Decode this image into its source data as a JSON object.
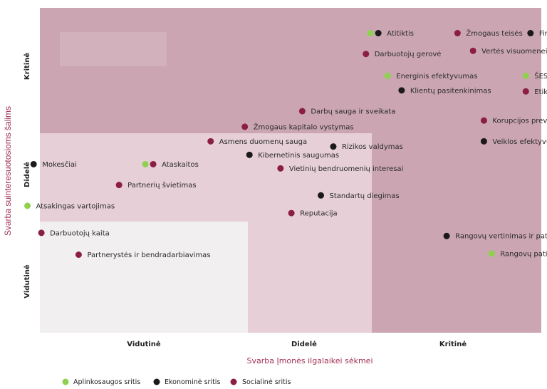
{
  "chart_data": {
    "type": "scatter",
    "title": "",
    "xlabel": "Svarba Įmonės ilgalaikei sėkmei",
    "ylabel": "Svarba suinteresuotosioms šalims",
    "x_categories": [
      "Vidutinė",
      "Didelė",
      "Kritinė"
    ],
    "y_categories": [
      "Vidutinė",
      "Didelė",
      "Kritinė"
    ],
    "colors": {
      "Aplinkosaugos sritis": "#8fd14f",
      "Ekonominė sritis": "#1a1a1a",
      "Socialinė sritis": "#8b1e45"
    },
    "legend": [
      {
        "name": "Aplinkosaugos sritis"
      },
      {
        "name": "Ekonominė sritis"
      },
      {
        "name": "Socialinė sritis"
      }
    ],
    "points": [
      {
        "label": "Atitiktis",
        "x": 1.51,
        "y": 2.88,
        "series": [
          "Aplinkosaugos sritis",
          "Ekonominė sritis"
        ]
      },
      {
        "label": "Žmogaus teisės",
        "x": 2.02,
        "y": 2.88,
        "series": [
          "Socialinė sritis"
        ]
      },
      {
        "label": "Finansinė grąža",
        "x": 2.49,
        "y": 2.88,
        "series": [
          "Ekonominė sritis"
        ]
      },
      {
        "label": "Vertės visuomenei kūrimas",
        "x": 2.12,
        "y": 2.71,
        "series": [
          "Socialinė sritis"
        ]
      },
      {
        "label": "Darbuotojų gerovė",
        "x": 1.43,
        "y": 2.68,
        "series": [
          "Socialinė sritis"
        ]
      },
      {
        "label": "Energinis efektyvumas",
        "x": 1.57,
        "y": 2.47,
        "series": [
          "Aplinkosaugos sritis"
        ]
      },
      {
        "label": "ŠESD emisijos",
        "x": 2.46,
        "y": 2.47,
        "series": [
          "Aplinkosaugos sritis"
        ]
      },
      {
        "label": "Klientų pasitenkinimas",
        "x": 1.66,
        "y": 2.33,
        "series": [
          "Ekonominė sritis"
        ]
      },
      {
        "label": "Etikos kodeksas",
        "x": 2.46,
        "y": 2.32,
        "series": [
          "Socialinė sritis"
        ]
      },
      {
        "label": "Darbų sauga ir sveikata",
        "x": 1.02,
        "y": 2.13,
        "series": [
          "Socialinė sritis"
        ]
      },
      {
        "label": "Korupcijos prevencija",
        "x": 2.19,
        "y": 2.04,
        "series": [
          "Socialinė sritis"
        ]
      },
      {
        "label": "Žmogaus kapitalo vystymas",
        "x": 0.65,
        "y": 1.98,
        "series": [
          "Socialinė sritis"
        ]
      },
      {
        "label": "Asmens duomenų sauga",
        "x": 0.43,
        "y": 1.84,
        "series": [
          "Socialinė sritis"
        ]
      },
      {
        "label": "Veiklos efektyvumas",
        "x": 2.19,
        "y": 1.84,
        "series": [
          "Ekonominė sritis"
        ]
      },
      {
        "label": "Rizikos valdymas",
        "x": 1.22,
        "y": 1.79,
        "series": [
          "Ekonominė sritis"
        ]
      },
      {
        "label": "Kibernetinis saugumas",
        "x": 0.68,
        "y": 1.71,
        "series": [
          "Ekonominė sritis"
        ]
      },
      {
        "label": "Mokesčiai",
        "x": -0.71,
        "y": 1.62,
        "series": [
          "Ekonominė sritis"
        ]
      },
      {
        "label": "Ataskaitos",
        "x": 0.06,
        "y": 1.62,
        "series": [
          "Aplinkosaugos sritis",
          "Socialinė sritis"
        ]
      },
      {
        "label": "Vietinių bendruomenių interesai",
        "x": 0.88,
        "y": 1.58,
        "series": [
          "Socialinė sritis"
        ]
      },
      {
        "label": "Partnerių švietimas",
        "x": -0.16,
        "y": 1.42,
        "series": [
          "Socialinė sritis"
        ]
      },
      {
        "label": "Standartų diegimas",
        "x": 1.14,
        "y": 1.32,
        "series": [
          "Ekonominė sritis"
        ]
      },
      {
        "label": "Atsakingas vartojimas",
        "x": -0.75,
        "y": 1.22,
        "series": [
          "Aplinkosaugos sritis"
        ]
      },
      {
        "label": "Reputacija",
        "x": 0.95,
        "y": 1.15,
        "series": [
          "Socialinė sritis"
        ]
      },
      {
        "label": "Darbuotojų kaita",
        "x": -0.66,
        "y": 0.96,
        "series": [
          "Socialinė sritis"
        ]
      },
      {
        "label": "Rangovų vertinimas ir patikra",
        "x": 1.95,
        "y": 0.93,
        "series": [
          "Ekonominė sritis"
        ]
      },
      {
        "label": "Partnerystės ir bendradarbiavimas",
        "x": -0.42,
        "y": 0.75,
        "series": [
          "Socialinė sritis"
        ]
      },
      {
        "label": "Rangovų patikra",
        "x": 2.24,
        "y": 0.76,
        "series": [
          "Aplinkosaugos sritis"
        ]
      }
    ]
  }
}
